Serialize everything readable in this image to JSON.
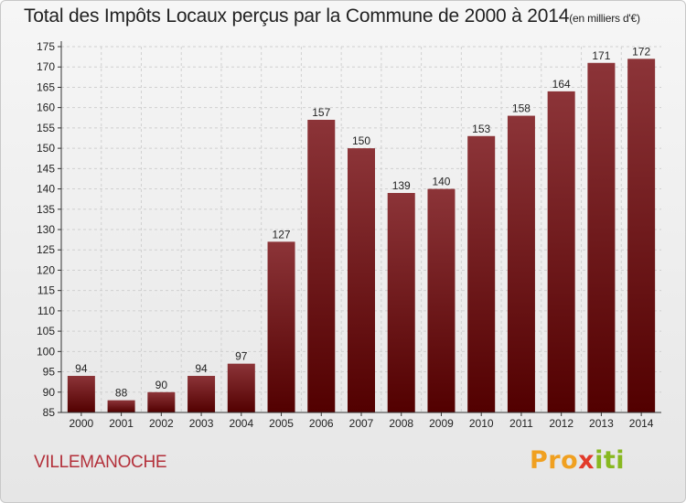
{
  "header": {
    "title": "Total des Impôts Locaux perçus par la Commune de 2000 à 2014",
    "unit": "(en milliers d'€)"
  },
  "footer": {
    "commune": "VILLEMANOCHE",
    "logo": {
      "p1": "Pro",
      "p2": "x",
      "p3": "iti"
    }
  },
  "colors": {
    "bar_top": "#8c3438",
    "bar_bottom": "#520000",
    "axis": "#333333",
    "grid": "#d0d0d0",
    "commune": "#b3303a"
  },
  "chart_data": {
    "type": "bar",
    "title": "Total des Impôts Locaux perçus par la Commune de 2000 à 2014",
    "xlabel": "",
    "ylabel": "",
    "categories": [
      "2000",
      "2001",
      "2002",
      "2003",
      "2004",
      "2005",
      "2006",
      "2007",
      "2008",
      "2009",
      "2010",
      "2011",
      "2012",
      "2013",
      "2014"
    ],
    "values": [
      94,
      88,
      90,
      94,
      97,
      127,
      157,
      150,
      139,
      140,
      153,
      158,
      164,
      171,
      172
    ],
    "ylim": [
      85,
      175
    ],
    "yticks": [
      85,
      90,
      95,
      100,
      105,
      110,
      115,
      120,
      125,
      130,
      135,
      140,
      145,
      150,
      155,
      160,
      165,
      170,
      175
    ],
    "grid": true,
    "data_labels": true
  }
}
